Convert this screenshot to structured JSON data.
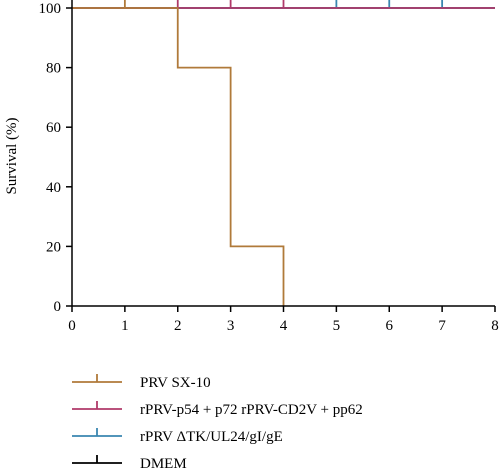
{
  "chart_data": {
    "type": "line",
    "step": true,
    "xlim": [
      0,
      8
    ],
    "ylim": [
      0,
      100
    ],
    "xticks": [
      0,
      1,
      2,
      3,
      4,
      5,
      6,
      7,
      8
    ],
    "yticks": [
      0,
      20,
      40,
      60,
      80,
      100
    ],
    "xlabel": "",
    "ylabel": "Survival (%)",
    "legend_position": "bottom",
    "series": [
      {
        "name": "PRV SX-10",
        "color": "#b07a3a",
        "points": [
          [
            0,
            100
          ],
          [
            2,
            100
          ],
          [
            2,
            80
          ],
          [
            3,
            80
          ],
          [
            3,
            20
          ],
          [
            4,
            20
          ],
          [
            4,
            0
          ]
        ],
        "censor": [
          1
        ]
      },
      {
        "name": "rPRV-p54 + p72 rPRV-CD2V + pp62",
        "color": "#b03a6a",
        "points": [
          [
            0,
            100
          ],
          [
            8,
            100
          ]
        ],
        "censor": [
          2,
          3,
          4
        ]
      },
      {
        "name": "rPRV ΔTK/UL24/gI/gE",
        "color": "#3a86b0",
        "points": [
          [
            0,
            100
          ],
          [
            8,
            100
          ]
        ],
        "censor": [
          5,
          6,
          7
        ]
      },
      {
        "name": "DMEM",
        "color": "#000000",
        "points": [
          [
            0,
            100
          ],
          [
            8,
            100
          ]
        ],
        "censor": []
      }
    ]
  }
}
